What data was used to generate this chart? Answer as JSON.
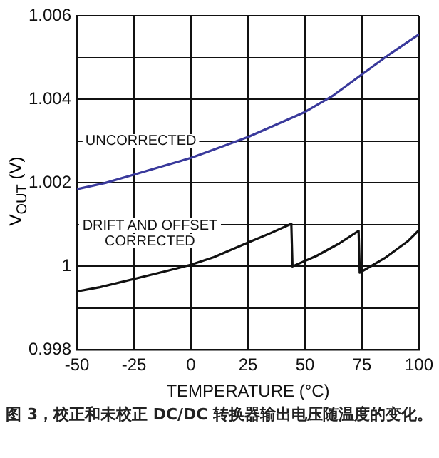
{
  "chart_data": {
    "type": "line",
    "xlabel": "TEMPERATURE (°C)",
    "ylabel": "V$_{OUT}$ (V)",
    "annotations": [
      "图 3，校正和未校正 DC/DC 转换器输出电压随温度的变化。"
    ],
    "series": [
      {
        "name": "UNCORRECTED",
        "color": "#3a3a9c",
        "x": [
          -50,
          -37.5,
          -25,
          -12.5,
          0,
          12.5,
          25,
          37.5,
          50,
          62.5,
          75,
          87.5,
          100
        ],
        "values": [
          1.00185,
          1.002,
          1.0022,
          1.0024,
          1.0026,
          1.00285,
          1.0031,
          1.0034,
          1.0037,
          1.0041,
          1.0046,
          1.0051,
          1.00556
        ]
      },
      {
        "name": "DRIFT AND OFFSET CORRECTED",
        "color": "#111111",
        "x": [
          -50,
          -40,
          -25,
          -10,
          0,
          10,
          25,
          35,
          44,
          44.5,
          55,
          65,
          73.5,
          74,
          85,
          95,
          100
        ],
        "values": [
          0.9994,
          0.9995,
          0.9997,
          0.9999,
          1.00004,
          1.00022,
          1.00057,
          1.0008,
          1.00102,
          1.0,
          1.00025,
          1.00055,
          1.00085,
          0.99985,
          1.0002,
          1.0006,
          1.00087
        ]
      }
    ],
    "xlim": [
      -50,
      100
    ],
    "xticks": [
      -50,
      -25,
      0,
      25,
      50,
      75,
      100
    ],
    "ylim": [
      0.998,
      1.006
    ],
    "yticks": [
      0.998,
      {
        "value": 0.999,
        "label": null
      },
      1.0,
      {
        "value": 1.001,
        "label": null
      },
      1.002,
      {
        "value": 1.003,
        "label": null
      },
      1.004,
      {
        "value": 1.005,
        "label": null
      },
      1.006
    ],
    "grid": true,
    "legend": false,
    "marker": "none",
    "line_style": "solid"
  }
}
